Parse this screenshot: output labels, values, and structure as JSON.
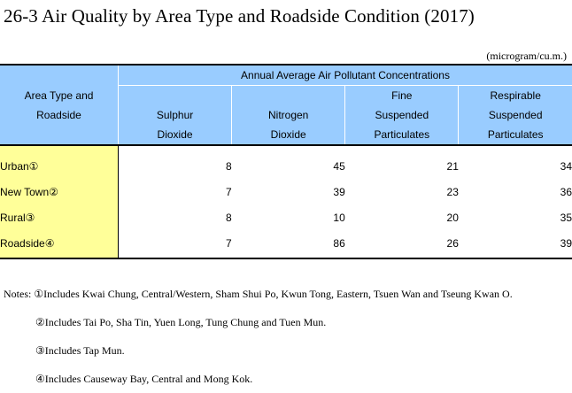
{
  "title": "26-3  Air Quality by Area Type and Roadside Condition (2017)",
  "unit": "(microgram/cu.m.)",
  "table": {
    "area_header": [
      "Area Type and",
      "Roadside"
    ],
    "group_header": "Annual Average Air Pollutant Concentrations",
    "columns": [
      [
        "Sulphur",
        "Dioxide"
      ],
      [
        "Nitrogen",
        "Dioxide"
      ],
      [
        "Fine",
        "Suspended",
        "Particulates"
      ],
      [
        "Respirable",
        "Suspended",
        "Particulates"
      ]
    ],
    "rows": [
      {
        "area": "Urban①",
        "values": [
          "8",
          "45",
          "21",
          "34"
        ]
      },
      {
        "area": "New Town②",
        "values": [
          "7",
          "39",
          "23",
          "36"
        ]
      },
      {
        "area": "Rural③",
        "values": [
          "8",
          "10",
          "20",
          "35"
        ]
      },
      {
        "area": "Roadside④",
        "values": [
          "7",
          "86",
          "26",
          "39"
        ]
      }
    ]
  },
  "notes": {
    "label": "Notes: ",
    "items": [
      "①Includes Kwai Chung, Central/Western, Sham Shui Po, Kwun Tong, Eastern, Tsuen Wan and Tseung Kwan O.",
      "②Includes Tai Po, Sha Tin, Yuen Long, Tung Chung and Tuen Mun.",
      "③Includes Tap Mun.",
      "④Includes Causeway Bay, Central and Mong Kok."
    ]
  }
}
